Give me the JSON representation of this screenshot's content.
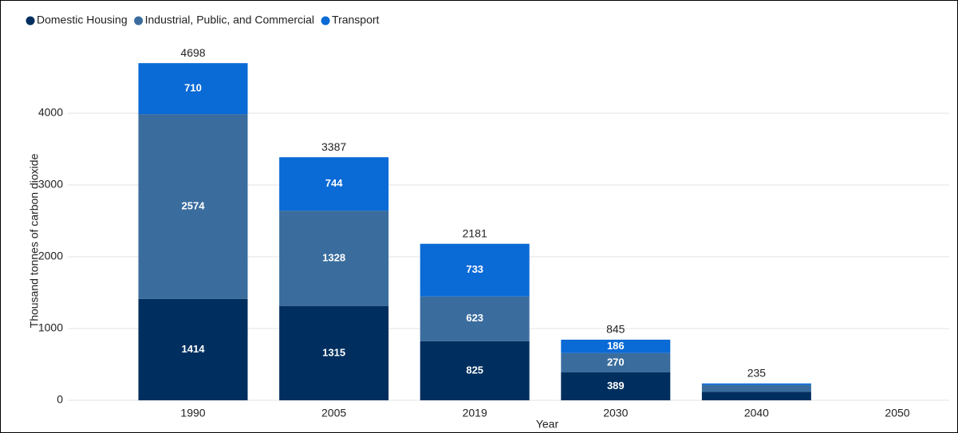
{
  "chart_data": {
    "type": "stacked_bar",
    "categories": [
      "1990",
      "2005",
      "2019",
      "2030",
      "2040",
      "2050"
    ],
    "series": [
      {
        "name": "Domestic Housing",
        "color": "#002f5f",
        "values": [
          1414,
          1315,
          825,
          389,
          120,
          null
        ]
      },
      {
        "name": "Industrial, Public, and Commercial",
        "color": "#3a6d9e",
        "values": [
          2574,
          1328,
          623,
          270,
          95,
          null
        ]
      },
      {
        "name": "Transport",
        "color": "#0a6ad6",
        "values": [
          710,
          744,
          733,
          186,
          20,
          null
        ]
      }
    ],
    "totals": [
      4698,
      3387,
      2181,
      845,
      235,
      null
    ],
    "ylim": [
      0,
      5000
    ],
    "yticks": [
      0,
      1000,
      2000,
      3000,
      4000
    ],
    "ylabel": "Thousand tonnes of carbon dioxide",
    "xlabel": "Year",
    "grid": true,
    "legend": "top-left"
  }
}
